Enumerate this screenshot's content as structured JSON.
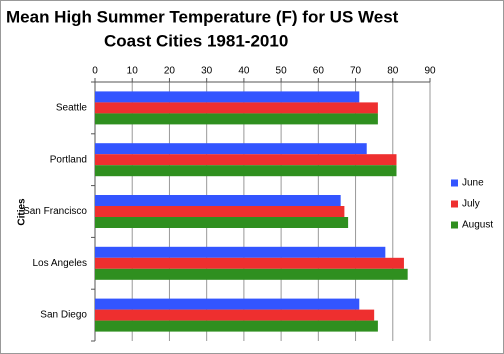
{
  "chart_data": {
    "type": "hbar",
    "title": [
      "Mean High Summer Temperature (F) for US West",
      "Coast Cities 1981-2010"
    ],
    "y_label": "Cities",
    "categories": [
      "Seattle",
      "Portland",
      "San Francisco",
      "Los Angeles",
      "San Diego"
    ],
    "series": [
      {
        "name": "June",
        "color": "#3355ff",
        "values": [
          71,
          73,
          66,
          78,
          71
        ]
      },
      {
        "name": "July",
        "color": "#ee2f2f",
        "values": [
          76,
          81,
          67,
          83,
          75
        ]
      },
      {
        "name": "August",
        "color": "#2f8f1f",
        "values": [
          76,
          81,
          68,
          84,
          76
        ]
      }
    ],
    "xlim": [
      0,
      90
    ],
    "xticks": [
      0,
      10,
      20,
      30,
      40,
      50,
      60,
      70,
      80,
      90
    ],
    "grid": true
  }
}
